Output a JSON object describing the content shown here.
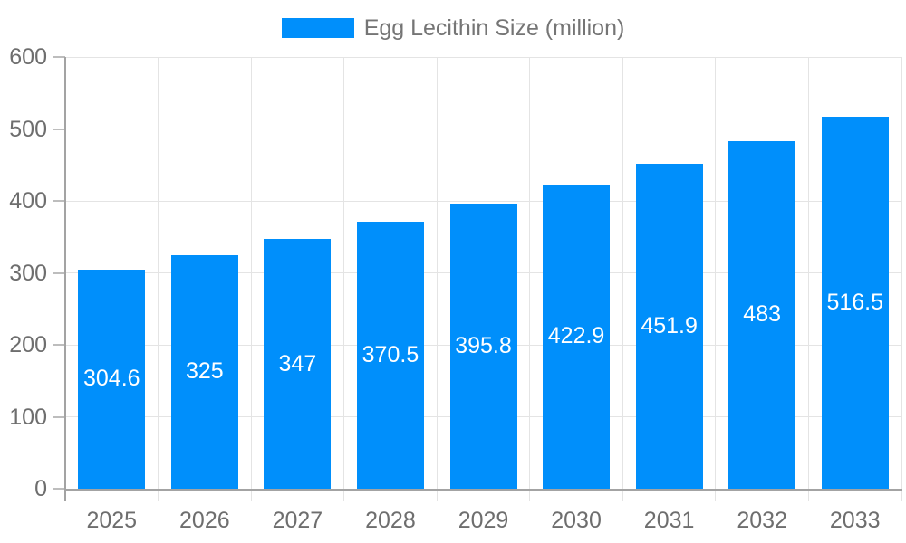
{
  "legend": {
    "label": "Egg Lecithin Size (million)"
  },
  "chart_data": {
    "type": "bar",
    "title": "Egg Lecithin Size (million)",
    "categories": [
      "2025",
      "2026",
      "2027",
      "2028",
      "2029",
      "2030",
      "2031",
      "2032",
      "2033"
    ],
    "series": [
      {
        "name": "Egg Lecithin Size (million)",
        "values": [
          304.6,
          325,
          347,
          370.5,
          395.8,
          422.9,
          451.9,
          483,
          516.5
        ]
      }
    ],
    "bar_labels": [
      "304.6",
      "325",
      "347",
      "370.5",
      "395.8",
      "422.9",
      "451.9",
      "483",
      "516.5"
    ],
    "xlabel": "",
    "ylabel": "",
    "ylim": [
      0,
      600
    ],
    "yticks": [
      0,
      100,
      200,
      300,
      400,
      500,
      600
    ],
    "grid": true,
    "legend_position": "top",
    "colors": {
      "bar": "#008FFB",
      "grid": "#e4e4e4",
      "axis": "#a3a3a3",
      "tick": "#bdbdbd",
      "axis_label": "#6e6e6e",
      "legend_text": "#757575",
      "bar_label": "#ffffff",
      "background": "#ffffff"
    }
  }
}
